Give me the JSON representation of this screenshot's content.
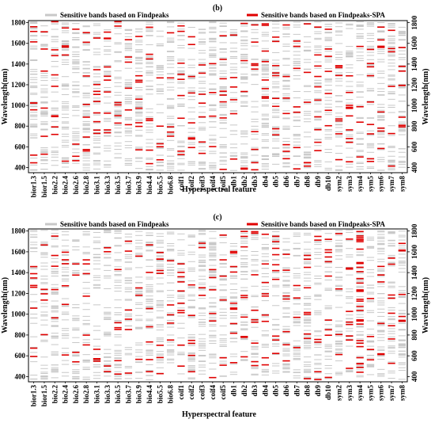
{
  "chart_data": [
    {
      "type": "bar",
      "panel_label": "(b)",
      "xlabel": "Hyperspectral feature",
      "ylabel_left": "Wavelength(nm)",
      "ylabel_right": "Wavelength(nm)",
      "ylim": [
        350,
        1820
      ],
      "yticks": [
        400,
        600,
        800,
        1000,
        1200,
        1400,
        1600,
        1800
      ],
      "legend": [
        {
          "name": "Sensitive bands based on Findpeaks",
          "color": "#c8c8c8"
        },
        {
          "name": "Sensitive bands based on Findpeaks-SPA",
          "color": "#e00000"
        }
      ],
      "categories": [
        "bior1.3",
        "bior1.5",
        "bio2.2",
        "bio2.4",
        "bio2.6",
        "bio2.8",
        "bio3.1",
        "bio3.3",
        "bio3.5",
        "bio3.7",
        "bio3.9",
        "bio4.4",
        "bio5.5",
        "bio6.8",
        "coif1",
        "coif2",
        "coif3",
        "coif4",
        "coif5",
        "db1",
        "db2",
        "db3",
        "db4",
        "db5",
        "db6",
        "db7",
        "db8",
        "db9",
        "db10",
        "sym2",
        "sym3",
        "sym4",
        "sym5",
        "sym6",
        "sym7",
        "sym8"
      ]
    },
    {
      "type": "bar",
      "panel_label": "(c)",
      "xlabel": "Hyperspectral feature",
      "ylabel_left": "Wavelength(nm)",
      "ylabel_right": "Wavelength(nm)",
      "ylim": [
        350,
        1820
      ],
      "yticks": [
        400,
        600,
        800,
        1000,
        1200,
        1400,
        1600,
        1800
      ],
      "legend": [
        {
          "name": "Sensitive bands based on Findpeaks",
          "color": "#c8c8c8"
        },
        {
          "name": "Sensitive bands based on Findpeaks-SPA",
          "color": "#e00000"
        }
      ],
      "categories": [
        "bior1.3",
        "bior1.5",
        "bio2.2",
        "bio2.4",
        "bio2.6",
        "bio2.8",
        "bio3.1",
        "bio3.3",
        "bio3.5",
        "bio3.7",
        "bio3.9",
        "bio4.4",
        "bio5.5",
        "bio6.8",
        "coif1",
        "coif2",
        "coif3",
        "coif4",
        "coif5",
        "db1",
        "db2",
        "db3",
        "db4",
        "db5",
        "db6",
        "db7",
        "db8",
        "db9",
        "db10",
        "sym2",
        "sym3",
        "sym4",
        "sym5",
        "sym6",
        "sym7",
        "sym8"
      ]
    }
  ]
}
